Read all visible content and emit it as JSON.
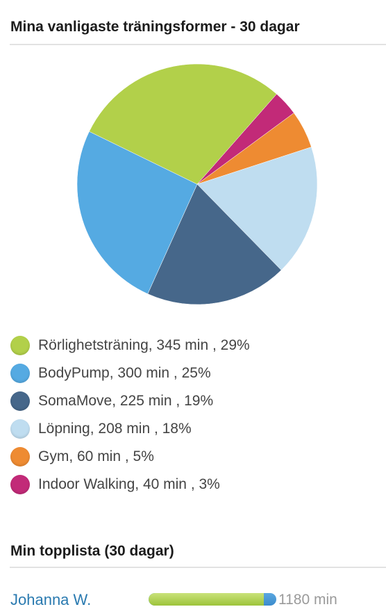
{
  "section1": {
    "title": "Mina vanligaste träningsformer - 30 dagar"
  },
  "chart_data": {
    "type": "pie",
    "title": "Mina vanligaste träningsformer - 30 dagar",
    "series": [
      {
        "name": "Rörlighetsträning",
        "value": 345,
        "unit": "min",
        "percent": 29,
        "color": "#b2d04a",
        "label": "Rörlighetsträning, 345 min , 29%"
      },
      {
        "name": "BodyPump",
        "value": 300,
        "unit": "min",
        "percent": 25,
        "color": "#55aae2",
        "label": "BodyPump, 300 min , 25%"
      },
      {
        "name": "SomaMove",
        "value": 225,
        "unit": "min",
        "percent": 19,
        "color": "#46678a",
        "label": "SomaMove, 225 min , 19%"
      },
      {
        "name": "Löpning",
        "value": 208,
        "unit": "min",
        "percent": 18,
        "color": "#bfddf0",
        "label": "Löpning, 208 min , 18%"
      },
      {
        "name": "Gym",
        "value": 60,
        "unit": "min",
        "percent": 5,
        "color": "#ee8b32",
        "label": "Gym, 60 min , 5%"
      },
      {
        "name": "Indoor Walking",
        "value": 40,
        "unit": "min",
        "percent": 3,
        "color": "#c22a78",
        "label": "Indoor Walking, 40 min , 3%"
      }
    ],
    "legend_position": "bottom"
  },
  "section2": {
    "title": "Min topplista (30 dagar)",
    "entries": [
      {
        "name": "Johanna W.",
        "value_label": "1180 min",
        "bar_green_fraction": 0.9,
        "bar_colors": {
          "primary": "#9dc43a",
          "secondary": "#3b8bcc"
        }
      }
    ]
  }
}
